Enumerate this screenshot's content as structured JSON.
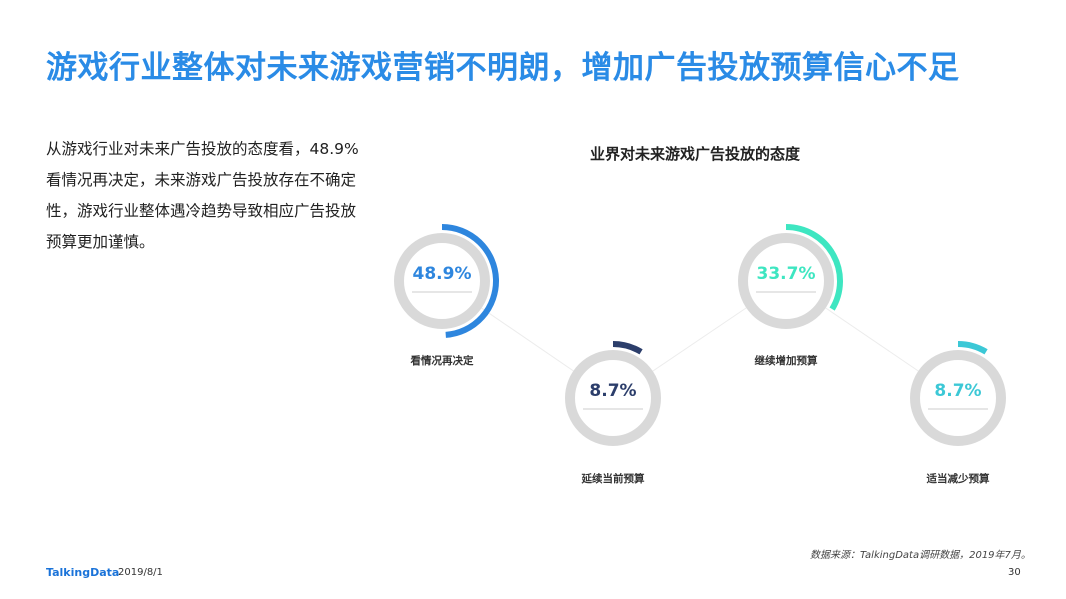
{
  "header": {
    "title": "游戏行业整体对未来游戏营销不明朗，增加广告投放预算信心不足"
  },
  "description": {
    "text": "从游戏行业对未来广告投放的态度看，48.9%看情况再决定，未来游戏广告投放存在不确定性，游戏行业整体遇冷趋势导致相应广告投放预算更加谨慎。"
  },
  "chart_data": {
    "type": "donut",
    "title": "业界对未来游戏广告投放的态度",
    "unit": "%",
    "items": [
      {
        "label": "看情况再决定",
        "value": 48.9,
        "value_label": "48.9%",
        "color": "#2e86de"
      },
      {
        "label": "延续当前预算",
        "value": 8.7,
        "value_label": "8.7%",
        "color": "#2c3e6b"
      },
      {
        "label": "继续增加预算",
        "value": 33.7,
        "value_label": "33.7%",
        "color": "#3ee6c1"
      },
      {
        "label": "适当减少预算",
        "value": 8.7,
        "value_label": "8.7%",
        "color": "#3cc8d6"
      }
    ],
    "track_color": "#d9d9d9"
  },
  "footer": {
    "source": "数据来源：TalkingData调研数据，2019年7月。",
    "logo": "TalkingData",
    "date": "2019/8/1",
    "page": "30"
  }
}
